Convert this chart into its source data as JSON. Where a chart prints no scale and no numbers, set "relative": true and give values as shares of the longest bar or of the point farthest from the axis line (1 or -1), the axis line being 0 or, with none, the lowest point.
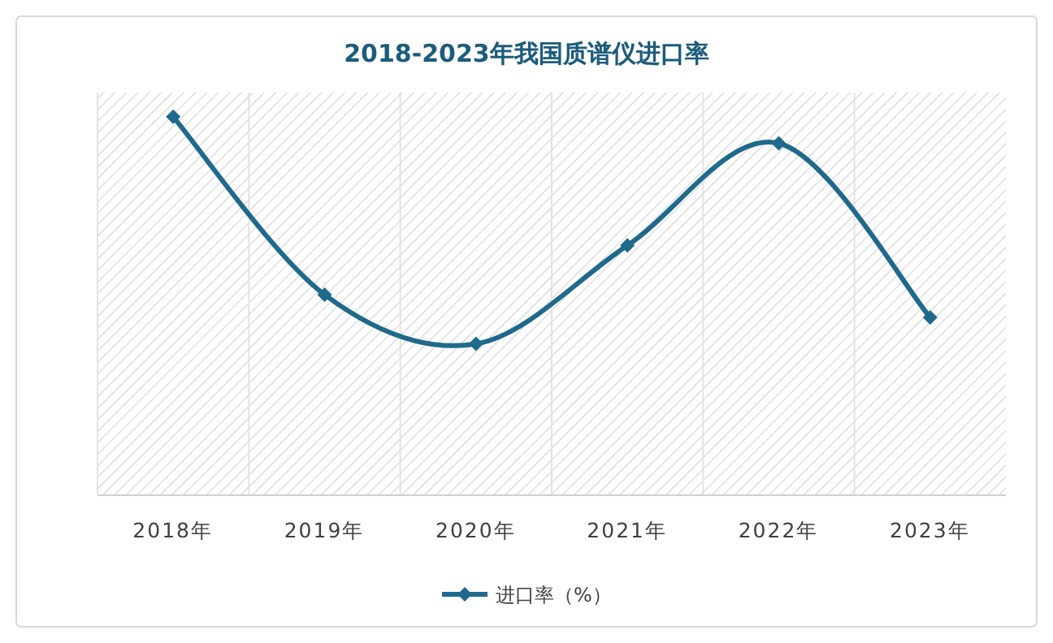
{
  "chart_data": {
    "type": "line",
    "title": "2018-2023年我国质谱仪进口率",
    "categories": [
      "2018年",
      "2019年",
      "2020年",
      "2021年",
      "2022年",
      "2023年"
    ],
    "relative": true,
    "series": [
      {
        "name": "进口率（%）",
        "color": "#1f6a8c",
        "values": [
          1,
          0.53,
          0.4,
          0.66,
          0.93,
          0.47
        ]
      }
    ],
    "marker": "diamond",
    "line_style": "solid",
    "grid": "x",
    "legend": "bottom"
  }
}
